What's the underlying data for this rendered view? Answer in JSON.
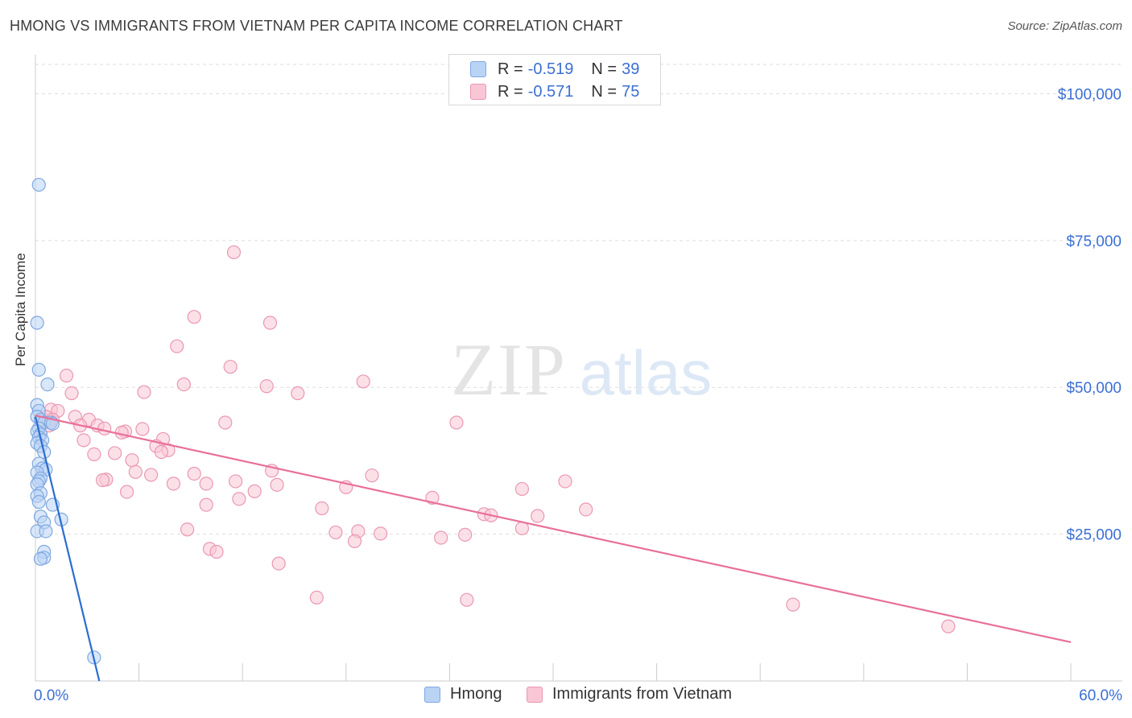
{
  "header": {
    "title": "HMONG VS IMMIGRANTS FROM VIETNAM PER CAPITA INCOME CORRELATION CHART",
    "source": "Source: ZipAtlas.com"
  },
  "legend": {
    "rows": [
      {
        "r_label": "R =",
        "r_value": "-0.519",
        "n_label": "N =",
        "n_value": "39"
      },
      {
        "r_label": "R =",
        "r_value": "-0.571",
        "n_label": "N =",
        "n_value": "75"
      }
    ]
  },
  "watermark": {
    "zip": "ZIP",
    "atlas": "atlas"
  },
  "colors": {
    "hmong_fill": "#b9d3f5",
    "hmong_stroke": "#7fa8e0",
    "hmong_line": "#2a6dd0",
    "vietnam_fill": "#f9c6d6",
    "vietnam_stroke": "#ea97b2",
    "vietnam_line": "#e8709a",
    "axis_label": "#3b6fd4",
    "grid": "#dedede"
  },
  "chart_data": {
    "type": "scatter",
    "title": "HMONG VS IMMIGRANTS FROM VIETNAM PER CAPITA INCOME CORRELATION CHART",
    "xlabel": "",
    "ylabel": "Per Capita Income",
    "xlim": [
      0,
      60
    ],
    "ylim": [
      0,
      105000
    ],
    "x_tick_labels": [
      "0.0%",
      "60.0%"
    ],
    "y_ticks": [
      25000,
      50000,
      75000,
      100000
    ],
    "y_tick_labels": [
      "$25,000",
      "$50,000",
      "$75,000",
      "$100,000"
    ],
    "grid": true,
    "series": [
      {
        "name": "Hmong",
        "r": -0.519,
        "n": 39,
        "trendline": {
          "x": [
            0,
            3.7
          ],
          "y": [
            45000,
            0
          ]
        },
        "points": [
          {
            "x": 0.2,
            "y": 84500
          },
          {
            "x": 0.1,
            "y": 61000
          },
          {
            "x": 0.2,
            "y": 53000
          },
          {
            "x": 0.7,
            "y": 50500
          },
          {
            "x": 0.1,
            "y": 47000
          },
          {
            "x": 0.2,
            "y": 46000
          },
          {
            "x": 0.1,
            "y": 45000
          },
          {
            "x": 0.3,
            "y": 44500
          },
          {
            "x": 0.5,
            "y": 44000
          },
          {
            "x": 0.9,
            "y": 44000
          },
          {
            "x": 1.0,
            "y": 43800
          },
          {
            "x": 0.2,
            "y": 43000
          },
          {
            "x": 0.1,
            "y": 42500
          },
          {
            "x": 0.3,
            "y": 42000
          },
          {
            "x": 0.2,
            "y": 41500
          },
          {
            "x": 0.4,
            "y": 41000
          },
          {
            "x": 0.1,
            "y": 40500
          },
          {
            "x": 0.3,
            "y": 40000
          },
          {
            "x": 0.5,
            "y": 39000
          },
          {
            "x": 0.2,
            "y": 37000
          },
          {
            "x": 0.4,
            "y": 36200
          },
          {
            "x": 0.6,
            "y": 36000
          },
          {
            "x": 0.1,
            "y": 35500
          },
          {
            "x": 0.3,
            "y": 34500
          },
          {
            "x": 0.2,
            "y": 34000
          },
          {
            "x": 0.1,
            "y": 33500
          },
          {
            "x": 0.3,
            "y": 32000
          },
          {
            "x": 0.1,
            "y": 31500
          },
          {
            "x": 1.0,
            "y": 30000
          },
          {
            "x": 0.2,
            "y": 30500
          },
          {
            "x": 0.3,
            "y": 28000
          },
          {
            "x": 1.5,
            "y": 27500
          },
          {
            "x": 0.5,
            "y": 27000
          },
          {
            "x": 0.1,
            "y": 25500
          },
          {
            "x": 0.6,
            "y": 25500
          },
          {
            "x": 0.5,
            "y": 22000
          },
          {
            "x": 0.5,
            "y": 21000
          },
          {
            "x": 0.3,
            "y": 20800
          },
          {
            "x": 3.4,
            "y": 4000
          }
        ]
      },
      {
        "name": "Immigrants from Vietnam",
        "r": -0.571,
        "n": 75,
        "trendline": {
          "x": [
            0,
            60
          ],
          "y": [
            45200,
            6600
          ]
        },
        "points": [
          {
            "x": 11.5,
            "y": 73000
          },
          {
            "x": 9.2,
            "y": 62000
          },
          {
            "x": 13.6,
            "y": 61000
          },
          {
            "x": 8.2,
            "y": 57000
          },
          {
            "x": 11.3,
            "y": 53500
          },
          {
            "x": 1.8,
            "y": 52000
          },
          {
            "x": 19.0,
            "y": 51000
          },
          {
            "x": 8.6,
            "y": 50500
          },
          {
            "x": 13.4,
            "y": 50200
          },
          {
            "x": 6.3,
            "y": 49200
          },
          {
            "x": 2.1,
            "y": 49000
          },
          {
            "x": 15.2,
            "y": 49000
          },
          {
            "x": 0.9,
            "y": 46200
          },
          {
            "x": 1.3,
            "y": 46000
          },
          {
            "x": 2.3,
            "y": 45000
          },
          {
            "x": 0.6,
            "y": 45000
          },
          {
            "x": 1.0,
            "y": 44500
          },
          {
            "x": 0.8,
            "y": 43500
          },
          {
            "x": 3.1,
            "y": 44500
          },
          {
            "x": 3.6,
            "y": 43500
          },
          {
            "x": 2.6,
            "y": 43500
          },
          {
            "x": 4.0,
            "y": 43000
          },
          {
            "x": 11.0,
            "y": 44000
          },
          {
            "x": 24.4,
            "y": 44000
          },
          {
            "x": 5.2,
            "y": 42500
          },
          {
            "x": 6.2,
            "y": 42900
          },
          {
            "x": 5.0,
            "y": 42300
          },
          {
            "x": 7.4,
            "y": 41200
          },
          {
            "x": 2.8,
            "y": 41000
          },
          {
            "x": 7.0,
            "y": 40000
          },
          {
            "x": 7.7,
            "y": 39300
          },
          {
            "x": 3.4,
            "y": 38600
          },
          {
            "x": 4.6,
            "y": 38800
          },
          {
            "x": 7.3,
            "y": 39000
          },
          {
            "x": 5.6,
            "y": 37600
          },
          {
            "x": 5.8,
            "y": 35600
          },
          {
            "x": 13.7,
            "y": 35800
          },
          {
            "x": 9.2,
            "y": 35300
          },
          {
            "x": 6.7,
            "y": 35100
          },
          {
            "x": 19.5,
            "y": 35000
          },
          {
            "x": 4.1,
            "y": 34300
          },
          {
            "x": 3.9,
            "y": 34200
          },
          {
            "x": 11.6,
            "y": 34000
          },
          {
            "x": 30.7,
            "y": 34000
          },
          {
            "x": 8.0,
            "y": 33600
          },
          {
            "x": 9.9,
            "y": 33600
          },
          {
            "x": 14.0,
            "y": 33400
          },
          {
            "x": 18.0,
            "y": 33000
          },
          {
            "x": 28.2,
            "y": 32700
          },
          {
            "x": 5.3,
            "y": 32200
          },
          {
            "x": 12.7,
            "y": 32300
          },
          {
            "x": 23.0,
            "y": 31200
          },
          {
            "x": 11.8,
            "y": 31000
          },
          {
            "x": 9.9,
            "y": 30000
          },
          {
            "x": 16.6,
            "y": 29400
          },
          {
            "x": 31.9,
            "y": 29200
          },
          {
            "x": 26.0,
            "y": 28400
          },
          {
            "x": 26.4,
            "y": 28200
          },
          {
            "x": 29.1,
            "y": 28100
          },
          {
            "x": 8.8,
            "y": 25800
          },
          {
            "x": 28.2,
            "y": 26000
          },
          {
            "x": 17.4,
            "y": 25300
          },
          {
            "x": 18.7,
            "y": 25500
          },
          {
            "x": 20.0,
            "y": 25100
          },
          {
            "x": 24.9,
            "y": 24900
          },
          {
            "x": 23.5,
            "y": 24400
          },
          {
            "x": 18.5,
            "y": 23800
          },
          {
            "x": 10.1,
            "y": 22500
          },
          {
            "x": 10.5,
            "y": 22000
          },
          {
            "x": 14.1,
            "y": 20000
          },
          {
            "x": 16.3,
            "y": 14200
          },
          {
            "x": 25.0,
            "y": 13800
          },
          {
            "x": 43.9,
            "y": 13000
          },
          {
            "x": 52.9,
            "y": 9300
          },
          {
            "x": 0.3,
            "y": 42000
          }
        ]
      }
    ]
  }
}
